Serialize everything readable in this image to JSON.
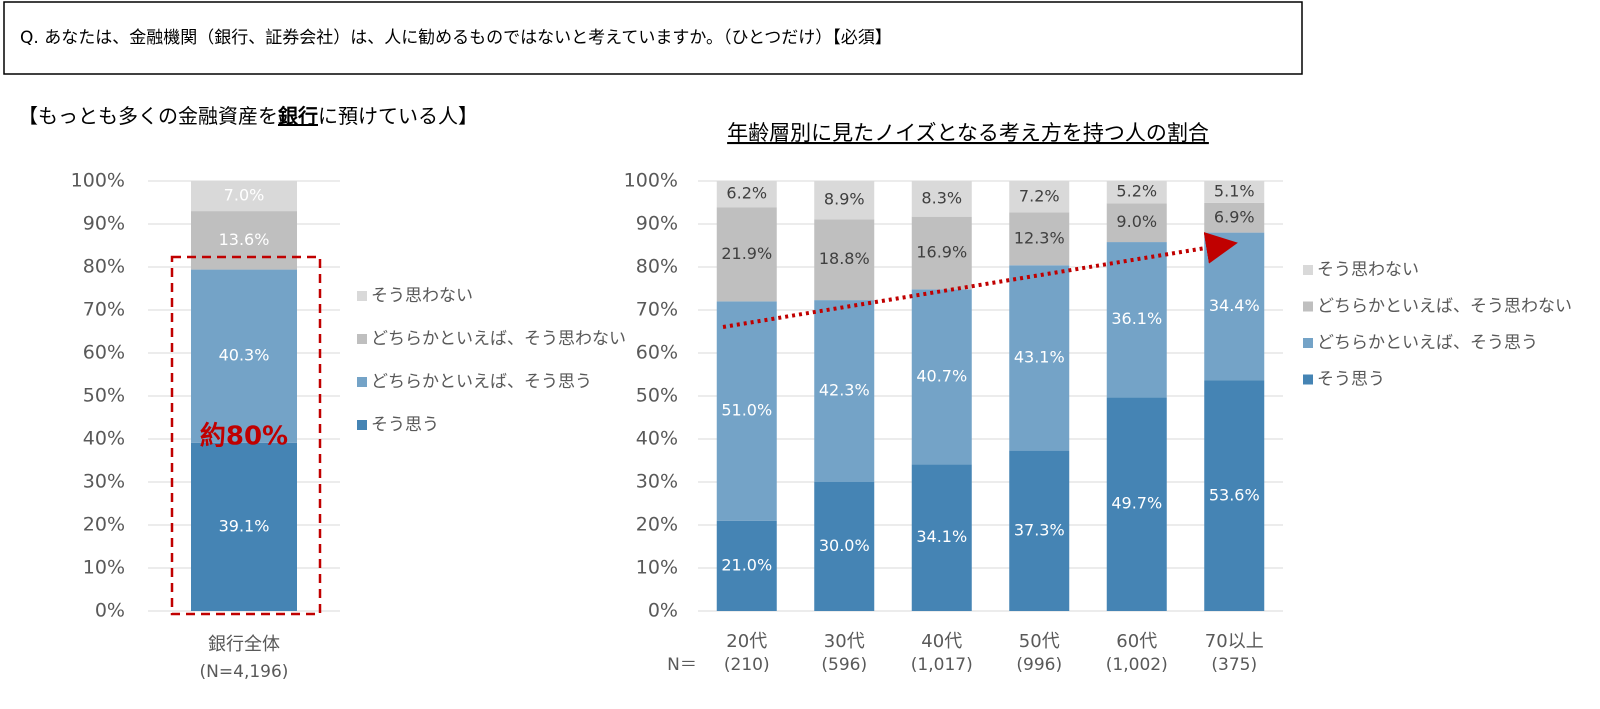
{
  "question": "Q. あなたは、金融機関（銀行、証券会社）は、人に勧めるものではないと考えていますか。（ひとつだけ）【必須】",
  "chart_data": [
    {
      "type": "bar",
      "stacked": true,
      "title": [
        "【もっとも多くの金融資産を",
        "銀行",
        "に預けている人】"
      ],
      "categories": [
        "銀行全体"
      ],
      "n_labels": [
        "(N=4,196)"
      ],
      "annotation": "約80%",
      "ylim": [
        0,
        100
      ],
      "yticks": [
        {
          "value": 0,
          "label": "0%"
        },
        {
          "value": 10,
          "label": "10%"
        },
        {
          "value": 20,
          "label": "20%"
        },
        {
          "value": 30,
          "label": "30%"
        },
        {
          "value": 40,
          "label": "40%"
        },
        {
          "value": 50,
          "label": "50%"
        },
        {
          "value": 60,
          "label": "60%"
        },
        {
          "value": 70,
          "label": "70%"
        },
        {
          "value": 80,
          "label": "80%"
        },
        {
          "value": 90,
          "label": "90%"
        },
        {
          "value": 100,
          "label": "100%"
        }
      ],
      "grid": true,
      "legend": "right",
      "series": [
        {
          "name": "そう思う",
          "color": "#4584b4",
          "label_color": "#ffffff",
          "values": [
            39.1
          ],
          "value_labels": [
            "39.1%"
          ]
        },
        {
          "name": "どちらかといえば、そう思う",
          "color": "#74a3c7",
          "label_color": "#ffffff",
          "values": [
            40.3
          ],
          "value_labels": [
            "40.3%"
          ]
        },
        {
          "name": "どちらかといえば、そう思わない",
          "color": "#bfbfbf",
          "label_color": "#ffffff",
          "values": [
            13.6
          ],
          "value_labels": [
            "13.6%"
          ]
        },
        {
          "name": "そう思わない",
          "color": "#d9d9d9",
          "label_color": "#ffffff",
          "values": [
            7
          ],
          "value_labels": [
            "7.0%"
          ]
        }
      ]
    },
    {
      "type": "bar",
      "stacked": true,
      "title": [
        "年齢層別に見たノイズとなる考え方を持つ人の割合"
      ],
      "categories": [
        "20代",
        "30代",
        "40代",
        "50代",
        "60代",
        "70以上"
      ],
      "n_prefix": "N＝",
      "n_labels": [
        "(210)",
        "(596)",
        "(1,017)",
        "(996)",
        "(1,002)",
        "(375)"
      ],
      "ylim": [
        0,
        100
      ],
      "yticks": [
        {
          "value": 0,
          "label": "0%"
        },
        {
          "value": 10,
          "label": "10%"
        },
        {
          "value": 20,
          "label": "20%"
        },
        {
          "value": 30,
          "label": "30%"
        },
        {
          "value": 40,
          "label": "40%"
        },
        {
          "value": 50,
          "label": "50%"
        },
        {
          "value": 60,
          "label": "60%"
        },
        {
          "value": 70,
          "label": "70%"
        },
        {
          "value": 80,
          "label": "80%"
        },
        {
          "value": 90,
          "label": "90%"
        },
        {
          "value": 100,
          "label": "100%"
        }
      ],
      "grid": true,
      "legend": "right",
      "series": [
        {
          "name": "そう思う",
          "color": "#4584b4",
          "label_color": "#ffffff",
          "values": [
            21,
            30,
            34.1,
            37.3,
            49.7,
            53.6
          ],
          "value_labels": [
            "21.0%",
            "30.0%",
            "34.1%",
            "37.3%",
            "49.7%",
            "53.6%"
          ]
        },
        {
          "name": "どちらかといえば、そう思う",
          "color": "#74a3c7",
          "label_color": "#ffffff",
          "values": [
            51,
            42.3,
            40.7,
            43.1,
            36.1,
            34.4
          ],
          "value_labels": [
            "51.0%",
            "42.3%",
            "40.7%",
            "43.1%",
            "36.1%",
            "34.4%"
          ]
        },
        {
          "name": "どちらかといえば、そう思わない",
          "color": "#bfbfbf",
          "label_color": "#404040",
          "values": [
            21.9,
            18.8,
            16.9,
            12.3,
            9,
            6.9
          ],
          "value_labels": [
            "21.9%",
            "18.8%",
            "16.9%",
            "12.3%",
            "9.0%",
            "6.9%"
          ]
        },
        {
          "name": "そう思わない",
          "color": "#d9d9d9",
          "label_color": "#404040",
          "values": [
            6.2,
            8.9,
            8.3,
            7.2,
            5.2,
            5.1
          ],
          "value_labels": [
            "6.2%",
            "8.9%",
            "8.3%",
            "7.2%",
            "5.2%",
            "5.1%"
          ]
        }
      ]
    }
  ]
}
